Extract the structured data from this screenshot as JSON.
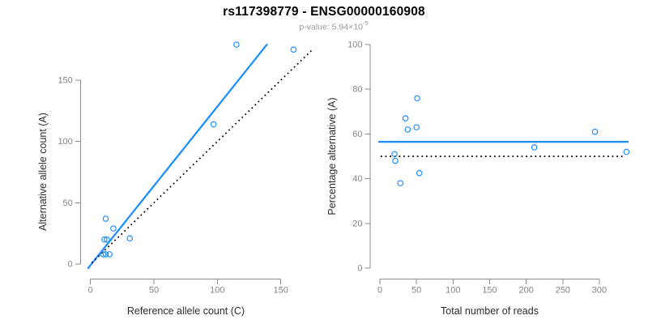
{
  "header": {
    "title": "rs117398779 - ENSG00000160908",
    "subtitle_prefix": "p-value: 5.94×10",
    "subtitle_exponent": "-5"
  },
  "colors": {
    "accent_blue": "#1E90FF",
    "identity_black": "#000000",
    "axis_gray": "#8a8a8a",
    "tick_label_gray": "#858585"
  },
  "chart_data": [
    {
      "type": "scatter",
      "panel": "left",
      "xlabel": "Reference allele count (C)",
      "ylabel": "Alternative allele count (A)",
      "xticks": [
        0,
        50,
        100,
        150
      ],
      "yticks": [
        0,
        50,
        100,
        150
      ],
      "xlim": [
        0,
        176
      ],
      "ylim": [
        0,
        182
      ],
      "grid": false,
      "marker": "open-circle",
      "points": [
        [
          115,
          179
        ],
        [
          160,
          175
        ],
        [
          97,
          114
        ],
        [
          12,
          37
        ],
        [
          18,
          29
        ],
        [
          11,
          20
        ],
        [
          13,
          20
        ],
        [
          31,
          21
        ],
        [
          10,
          8
        ],
        [
          12,
          8
        ],
        [
          15,
          8
        ]
      ],
      "lines": [
        {
          "name": "fit-line",
          "style": "solid",
          "color": "#1E90FF",
          "slope": 1.295,
          "intercept": -1,
          "x_from": -2.2,
          "x_to": 139.4
        },
        {
          "name": "identity-line",
          "style": "dotted",
          "color": "#000000",
          "slope": 1,
          "intercept": 0,
          "x_from": 1,
          "x_to": 175.8
        }
      ]
    },
    {
      "type": "scatter",
      "panel": "right",
      "xlabel": "Total number of reads",
      "ylabel": "Percentage alternative (A)",
      "xticks": [
        0,
        50,
        100,
        150,
        200,
        250,
        300
      ],
      "yticks": [
        0,
        20,
        40,
        60,
        80,
        100
      ],
      "xlim": [
        0,
        340
      ],
      "ylim": [
        0,
        100
      ],
      "grid": false,
      "marker": "open-circle",
      "points": [
        [
          51,
          76
        ],
        [
          35,
          67
        ],
        [
          38,
          62
        ],
        [
          50,
          63
        ],
        [
          20,
          51
        ],
        [
          21,
          48
        ],
        [
          54,
          42.5
        ],
        [
          28,
          38
        ],
        [
          211,
          54
        ],
        [
          294,
          61
        ],
        [
          337,
          52
        ]
      ],
      "lines": [
        {
          "name": "mean-line",
          "style": "solid",
          "color": "#1E90FF",
          "slope": 0,
          "intercept": 56.5,
          "x_from": -2.2,
          "x_to": 339.8
        },
        {
          "name": "null-line",
          "style": "dotted",
          "color": "#000000",
          "slope": 0,
          "intercept": 50,
          "x_from": 1.1,
          "x_to": 333.2
        }
      ]
    }
  ]
}
